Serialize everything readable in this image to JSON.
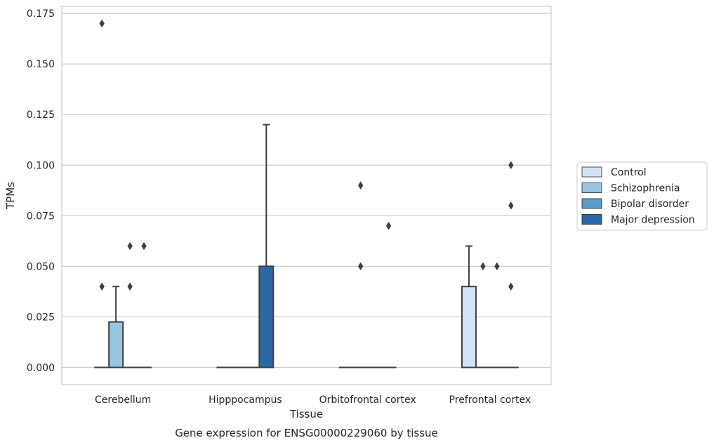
{
  "chart_data": {
    "type": "box",
    "title": "",
    "xlabel": "Tissue",
    "ylabel": "TPMs",
    "caption": "Gene expression for ENSG00000229060 by tissue",
    "ylim": [
      -0.0085,
      0.1785
    ],
    "yticks": [
      "0.000",
      "0.025",
      "0.050",
      "0.075",
      "0.100",
      "0.125",
      "0.150",
      "0.175"
    ],
    "grid": "horizontal",
    "legend_position": "right",
    "categories": [
      "Cerebellum",
      "Hipppocampus",
      "Orbitofrontal cortex",
      "Prefrontal cortex"
    ],
    "series": [
      {
        "name": "Control",
        "color": "#d3e3f3"
      },
      {
        "name": "Schizophrenia",
        "color": "#9ac5e0"
      },
      {
        "name": "Bipolar disorder",
        "color": "#5a9bc8"
      },
      {
        "name": "Major depression",
        "color": "#2c68a5"
      }
    ],
    "boxes": [
      {
        "category": 0,
        "series": 0,
        "min": 0,
        "q1": 0,
        "median": 0,
        "q3": 0,
        "max": 0,
        "outliers": [
          0.04,
          0.17
        ]
      },
      {
        "category": 0,
        "series": 1,
        "min": 0,
        "q1": 0,
        "median": 0,
        "q3": 0.0225,
        "max": 0.04,
        "outliers": []
      },
      {
        "category": 0,
        "series": 2,
        "min": 0,
        "q1": 0,
        "median": 0,
        "q3": 0,
        "max": 0,
        "outliers": [
          0.04,
          0.06
        ]
      },
      {
        "category": 0,
        "series": 3,
        "min": 0,
        "q1": 0,
        "median": 0,
        "q3": 0,
        "max": 0,
        "outliers": [
          0.06
        ]
      },
      {
        "category": 1,
        "series": 0,
        "min": 0,
        "q1": 0,
        "median": 0,
        "q3": 0,
        "max": 0,
        "outliers": []
      },
      {
        "category": 1,
        "series": 1,
        "min": 0,
        "q1": 0,
        "median": 0,
        "q3": 0,
        "max": 0,
        "outliers": []
      },
      {
        "category": 1,
        "series": 2,
        "min": 0,
        "q1": 0,
        "median": 0,
        "q3": 0,
        "max": 0,
        "outliers": []
      },
      {
        "category": 1,
        "series": 3,
        "min": 0,
        "q1": 0,
        "median": 0,
        "q3": 0.05,
        "max": 0.12,
        "outliers": []
      },
      {
        "category": 2,
        "series": 0,
        "min": 0,
        "q1": 0,
        "median": 0,
        "q3": 0,
        "max": 0,
        "outliers": []
      },
      {
        "category": 2,
        "series": 1,
        "min": 0,
        "q1": 0,
        "median": 0,
        "q3": 0,
        "max": 0,
        "outliers": [
          0.05,
          0.09
        ]
      },
      {
        "category": 2,
        "series": 2,
        "min": 0,
        "q1": 0,
        "median": 0,
        "q3": 0,
        "max": 0,
        "outliers": []
      },
      {
        "category": 2,
        "series": 3,
        "min": 0,
        "q1": 0,
        "median": 0,
        "q3": 0,
        "max": 0,
        "outliers": [
          0.07
        ]
      },
      {
        "category": 3,
        "series": 0,
        "min": 0,
        "q1": 0,
        "median": 0,
        "q3": 0.04,
        "max": 0.06,
        "outliers": []
      },
      {
        "category": 3,
        "series": 1,
        "min": 0,
        "q1": 0,
        "median": 0,
        "q3": 0,
        "max": 0,
        "outliers": [
          0.05
        ]
      },
      {
        "category": 3,
        "series": 2,
        "min": 0,
        "q1": 0,
        "median": 0,
        "q3": 0,
        "max": 0,
        "outliers": [
          0.05
        ]
      },
      {
        "category": 3,
        "series": 3,
        "min": 0,
        "q1": 0,
        "median": 0,
        "q3": 0,
        "max": 0,
        "outliers": [
          0.04,
          0.08,
          0.1
        ]
      }
    ]
  }
}
